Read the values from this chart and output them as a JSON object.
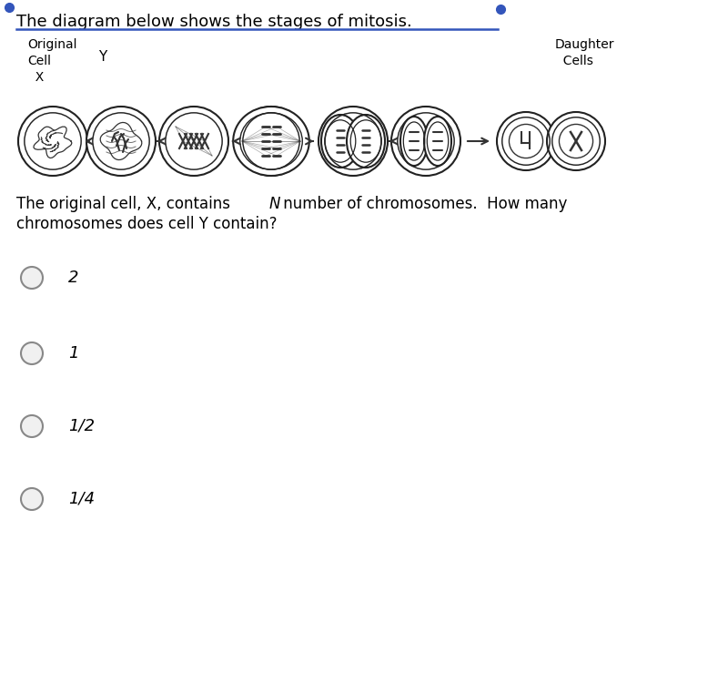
{
  "title": "The diagram below shows the stages of mitosis.",
  "background_color": "#ffffff",
  "blue_dot_color": "#3355bb",
  "title_underline_color": "#3355bb",
  "title_color": "#000000",
  "question_text_line1": "The original cell, X, contains ",
  "question_text_italic": "N",
  "question_text_line1b": " number of chromosomes.  How many",
  "question_text_line2": "chromosomes does cell Y contain?",
  "answer_options": [
    "2",
    "1",
    "1/2",
    "1/4"
  ],
  "circle_edge_color": "#222222",
  "chrom_color": "#333333",
  "arrow_color": "#333333"
}
